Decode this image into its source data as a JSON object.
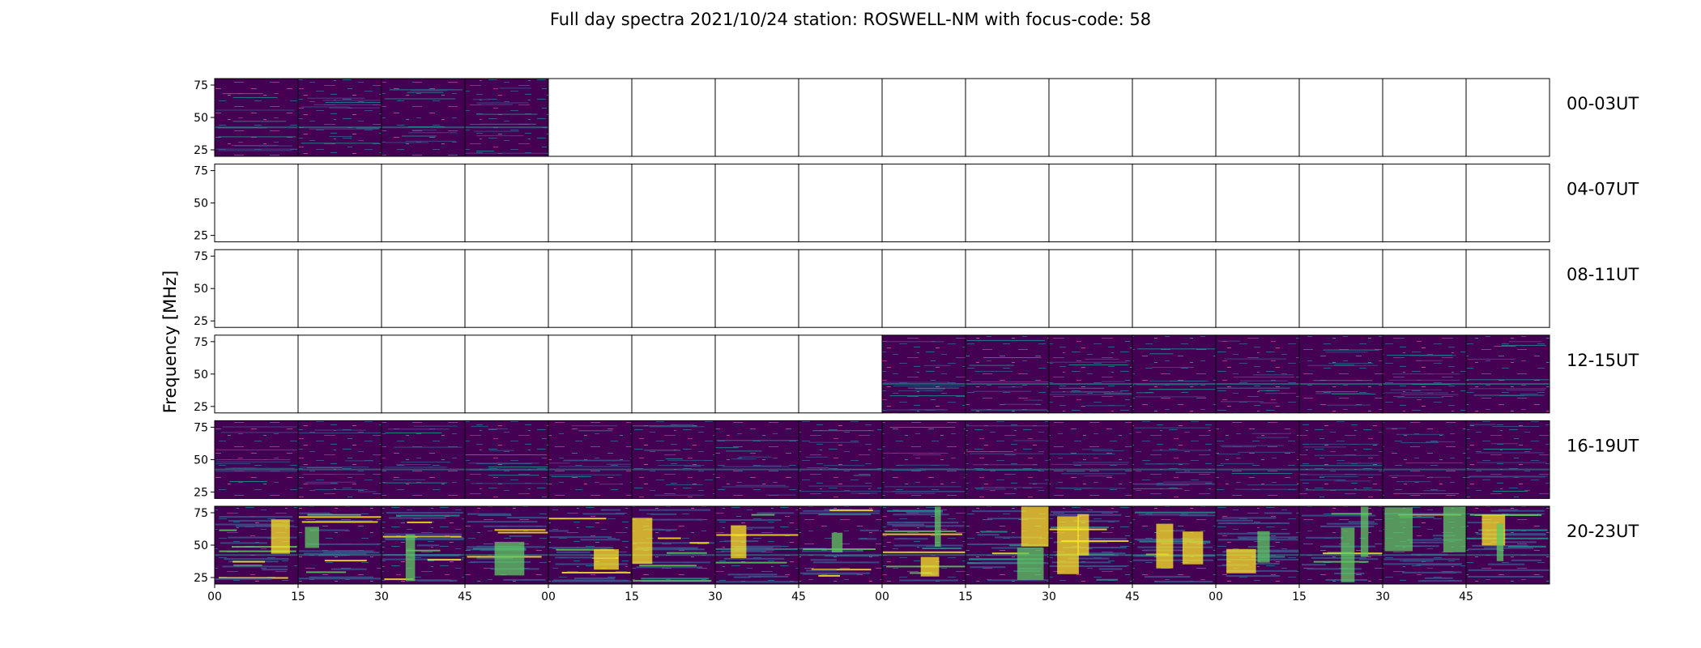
{
  "chart_data": {
    "type": "heatmap",
    "title": "Full day spectra 2021/10/24 station: ROSWELL-NM with focus-code: 58",
    "ylabel": "Frequency [MHz]",
    "xlabel": "",
    "y_range_mhz": [
      20,
      80
    ],
    "y_ticks": [
      "75",
      "50",
      "25"
    ],
    "y_tick_values": [
      75,
      50,
      25
    ],
    "x_ticks": [
      "00",
      "15",
      "30",
      "45",
      "00",
      "15",
      "30",
      "45",
      "00",
      "15",
      "30",
      "45",
      "00",
      "15",
      "30",
      "45"
    ],
    "panels_per_row": 16,
    "minutes_per_panel": 15,
    "colormap": "viridis",
    "rows": [
      {
        "label": "00-03UT",
        "panels_with_data": [
          1,
          1,
          1,
          1,
          0,
          0,
          0,
          0,
          0,
          0,
          0,
          0,
          0,
          0,
          0,
          0
        ]
      },
      {
        "label": "04-07UT",
        "panels_with_data": [
          0,
          0,
          0,
          0,
          0,
          0,
          0,
          0,
          0,
          0,
          0,
          0,
          0,
          0,
          0,
          0
        ]
      },
      {
        "label": "08-11UT",
        "panels_with_data": [
          0,
          0,
          0,
          0,
          0,
          0,
          0,
          0,
          0,
          0,
          0,
          0,
          0,
          0,
          0,
          0
        ]
      },
      {
        "label": "12-15UT",
        "panels_with_data": [
          0,
          0,
          0,
          0,
          0,
          0,
          0,
          0,
          1,
          1,
          1,
          1,
          1,
          1,
          1,
          1
        ]
      },
      {
        "label": "16-19UT",
        "panels_with_data": [
          1,
          1,
          1,
          1,
          1,
          1,
          1,
          1,
          1,
          1,
          1,
          1,
          1,
          1,
          1,
          1
        ]
      },
      {
        "label": "20-23UT",
        "panels_with_data": [
          1,
          1,
          1,
          1,
          1,
          1,
          1,
          1,
          1,
          1,
          1,
          1,
          1,
          1,
          1,
          1
        ]
      }
    ],
    "colors": {
      "background": "#ffffff",
      "low": "#440154",
      "mid_low": "#3b528b",
      "mid": "#21918c",
      "mid_high": "#5ec962",
      "high": "#fde725",
      "frame": "#000000"
    }
  }
}
